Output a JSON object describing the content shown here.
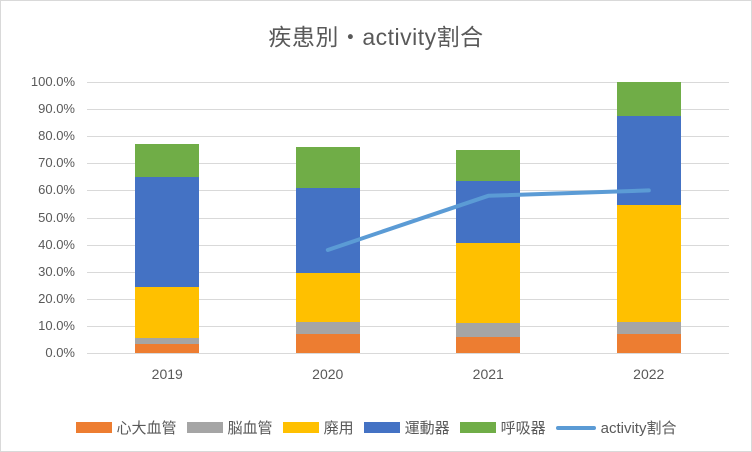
{
  "chart_data": {
    "type": "combo_stacked_bar_line",
    "title": "疾患別・activity割合",
    "categories": [
      "2019",
      "2020",
      "2021",
      "2022"
    ],
    "stacking": "percent",
    "series": [
      {
        "name": "心大血管",
        "type": "bar",
        "color": "#ED7D31",
        "values": [
          3.5,
          7.0,
          6.0,
          7.0
        ]
      },
      {
        "name": "脳血管",
        "type": "bar",
        "color": "#A5A5A5",
        "values": [
          2.0,
          4.5,
          5.0,
          4.5
        ]
      },
      {
        "name": "廃用",
        "type": "bar",
        "color": "#FFC000",
        "values": [
          19.0,
          18.0,
          29.5,
          43.0
        ]
      },
      {
        "name": "運動器",
        "type": "bar",
        "color": "#4472C4",
        "values": [
          40.5,
          31.5,
          23.0,
          33.0
        ]
      },
      {
        "name": "呼吸器",
        "type": "bar",
        "color": "#70AD47",
        "values": [
          12.0,
          15.0,
          11.5,
          12.5
        ]
      },
      {
        "name": "activity割合",
        "type": "line",
        "color": "#5B9BD5",
        "values": [
          null,
          38.0,
          58.0,
          60.0
        ]
      }
    ],
    "bar_totals": [
      77.0,
      76.0,
      75.0,
      100.0
    ],
    "y_axis": {
      "min": 0,
      "max": 100,
      "step": 10,
      "tick_labels": [
        "0.0%",
        "10.0%",
        "20.0%",
        "30.0%",
        "40.0%",
        "50.0%",
        "60.0%",
        "70.0%",
        "80.0%",
        "90.0%",
        "100.0%"
      ]
    },
    "grid": true,
    "legend_position": "bottom",
    "colors": {
      "gridline": "#d9d9d9",
      "text": "#595959",
      "background": "#ffffff",
      "border": "#d9d9d9"
    }
  }
}
